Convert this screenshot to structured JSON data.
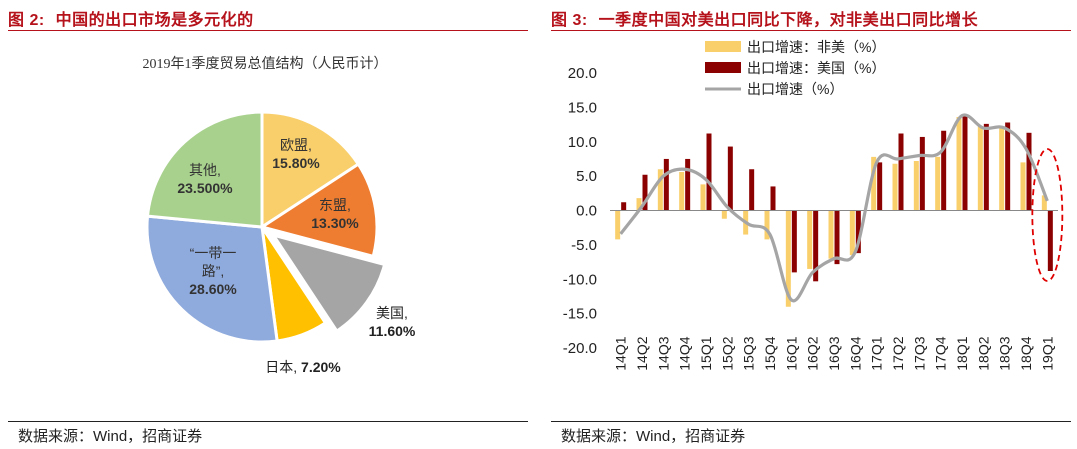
{
  "figure2": {
    "label": "图 2:",
    "title": "中国的出口市场是多元化的",
    "source": "数据来源：Wind，招商证券"
  },
  "figure3": {
    "label": "图 3:",
    "title": "一季度中国对美出口同比下降，对非美出口同比增长",
    "source": "数据来源：Wind，招商证券"
  },
  "colors": {
    "title_red": "#b5121b",
    "eu": "#f9cf6b",
    "asean": "#ee7d31",
    "us": "#a5a5a5",
    "japan": "#ffc000",
    "belt_road": "#8faadc",
    "other": "#a9d18e",
    "non_us_bar": "#f9cf6b",
    "us_bar": "#8b0000",
    "total_line": "#a5a5a5",
    "highlight": "#e00000"
  },
  "chart_data": [
    {
      "type": "pie",
      "title": "2019年1季度贸易总值结构（人民币计）",
      "slices": [
        {
          "name": "欧盟",
          "value": 15.8,
          "label": "15.80%",
          "color": "#f9cf6b",
          "exploded": false
        },
        {
          "name": "东盟",
          "value": 13.3,
          "label": "13.30%",
          "color": "#ee7d31",
          "exploded": false
        },
        {
          "name": "美国",
          "value": 11.6,
          "label": "11.60%",
          "color": "#a5a5a5",
          "exploded": true
        },
        {
          "name": "日本",
          "value": 7.2,
          "label": "7.20%",
          "color": "#ffc000",
          "exploded": false
        },
        {
          "name": "“一带一路”",
          "value": 28.6,
          "label": "28.60%",
          "color": "#8faadc",
          "exploded": false
        },
        {
          "name": "其他",
          "value": 23.5,
          "label": "23.500%",
          "color": "#a9d18e",
          "exploded": false
        }
      ]
    },
    {
      "type": "bar",
      "categories": [
        "14Q1",
        "14Q2",
        "14Q3",
        "14Q4",
        "15Q1",
        "15Q2",
        "15Q3",
        "15Q4",
        "16Q1",
        "16Q2",
        "16Q3",
        "16Q4",
        "17Q1",
        "17Q2",
        "17Q3",
        "17Q4",
        "18Q1",
        "18Q2",
        "18Q3",
        "18Q4",
        "19Q1"
      ],
      "ylim": [
        -20.0,
        20.0
      ],
      "yticks": [
        "20.0",
        "15.0",
        "10.0",
        "5.0",
        "0.0",
        "-5.0",
        "-10.0",
        "-15.0",
        "-20.0"
      ],
      "grid": false,
      "legend_position": "top-left",
      "series": [
        {
          "name": "出口增速：非美（%）",
          "kind": "bar",
          "color": "#f9cf6b",
          "values": [
            -4.2,
            1.8,
            6.0,
            5.6,
            3.8,
            -1.2,
            -3.5,
            -4.2,
            -14.0,
            -8.5,
            -7.0,
            -6.5,
            7.8,
            6.8,
            7.2,
            7.8,
            13.6,
            12.3,
            12.0,
            7.0,
            2.2
          ]
        },
        {
          "name": "出口增速：美国（%）",
          "kind": "bar",
          "color": "#8b0000",
          "values": [
            1.2,
            5.2,
            7.5,
            7.5,
            11.2,
            9.3,
            6.0,
            3.5,
            -9.0,
            -10.3,
            -7.8,
            -6.2,
            7.0,
            11.2,
            10.7,
            11.6,
            13.8,
            12.6,
            12.8,
            11.3,
            -8.8
          ]
        },
        {
          "name": "出口增速（%）",
          "kind": "line",
          "color": "#a5a5a5",
          "values": [
            -3.4,
            0.6,
            5.0,
            6.0,
            4.5,
            0.5,
            -2.0,
            -3.5,
            -13.0,
            -9.0,
            -7.0,
            -6.0,
            7.0,
            7.5,
            8.0,
            8.5,
            13.8,
            12.0,
            12.0,
            9.0,
            1.4
          ]
        }
      ],
      "highlight": {
        "category": "19Q1",
        "shape": "dashed-ellipse",
        "color": "#e00000"
      }
    }
  ]
}
